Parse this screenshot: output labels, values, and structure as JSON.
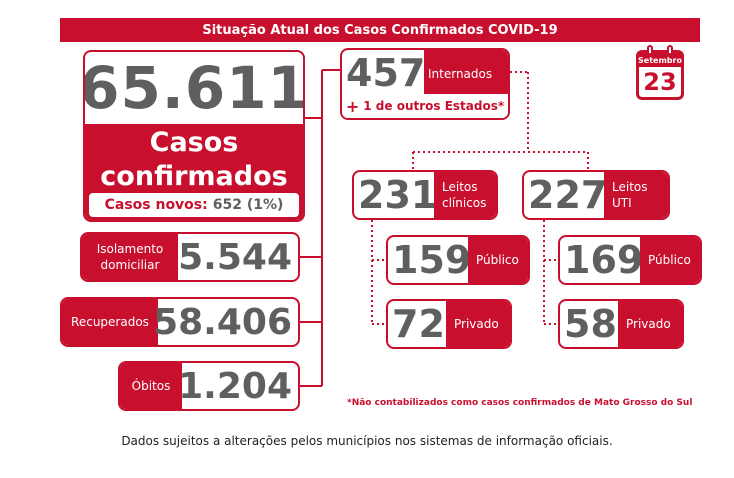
{
  "banner": {
    "title": "Situação Atual dos Casos Confirmados COVID-19"
  },
  "calendar": {
    "month": "Setembro",
    "day": "23"
  },
  "confirmed": {
    "value": "65.611",
    "label_line1": "Casos",
    "label_line2": "confirmados",
    "new_label": "Casos novos:",
    "new_value": "652 (1%)"
  },
  "stats": {
    "isolation": {
      "label_line1": "Isolamento",
      "label_line2": "domiciliar",
      "value": "5.544"
    },
    "recovered": {
      "label": "Recuperados",
      "value": "58.406"
    },
    "deaths": {
      "label": "Óbitos",
      "value": "1.204"
    }
  },
  "hospitalized": {
    "value": "457",
    "label": "Internados",
    "extra_plus": "+",
    "extra_text": "1 de outros Estados*"
  },
  "clinical": {
    "value": "231",
    "label_line1": "Leitos",
    "label_line2": "clínicos",
    "public": {
      "value": "159",
      "label": "Público"
    },
    "private": {
      "value": "72",
      "label": "Privado"
    }
  },
  "icu": {
    "value": "227",
    "label_line1": "Leitos",
    "label_line2": "UTI",
    "public": {
      "value": "169",
      "label": "Público"
    },
    "private": {
      "value": "58",
      "label": "Privado"
    }
  },
  "footnote": "*Não contabilizados como casos confirmados de Mato Grosso do Sul",
  "disclaimer": "Dados sujeitos a alterações pelos municípios nos sistemas de informação oficiais.",
  "colors": {
    "accent": "#c8102e",
    "number": "#5f5f5f"
  }
}
